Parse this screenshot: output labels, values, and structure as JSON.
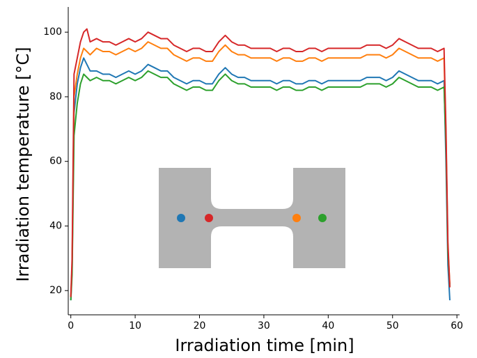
{
  "chart_data": {
    "type": "line",
    "x_label": "Irradiation time [min]",
    "y_label": "Irradiation temperature [°C]",
    "x": [
      0,
      0.2,
      0.5,
      1,
      1.5,
      2,
      2.5,
      3,
      4,
      5,
      6,
      7,
      8,
      9,
      10,
      11,
      12,
      13,
      14,
      15,
      16,
      17,
      18,
      19,
      20,
      21,
      22,
      23,
      24,
      25,
      26,
      27,
      28,
      29,
      30,
      31,
      32,
      33,
      34,
      35,
      36,
      37,
      38,
      39,
      40,
      41,
      42,
      43,
      44,
      45,
      46,
      47,
      48,
      49,
      50,
      51,
      52,
      53,
      54,
      55,
      56,
      57,
      58,
      58.3,
      58.6,
      58.9
    ],
    "series": [
      {
        "color": "#1f77b4",
        "values": [
          17,
          27,
          75,
          84,
          89,
          92,
          90,
          88,
          88,
          87,
          87,
          86,
          87,
          88,
          87,
          88,
          90,
          89,
          88,
          88,
          86,
          85,
          84,
          85,
          85,
          84,
          84,
          87,
          89,
          87,
          86,
          86,
          85,
          85,
          85,
          85,
          84,
          85,
          85,
          84,
          84,
          85,
          85,
          84,
          85,
          85,
          85,
          85,
          85,
          85,
          86,
          86,
          86,
          85,
          86,
          88,
          87,
          86,
          85,
          85,
          85,
          84,
          85,
          60,
          28,
          17
        ]
      },
      {
        "color": "#ff7f0e",
        "values": [
          18,
          28,
          80,
          87,
          92,
          95,
          94,
          93,
          95,
          94,
          94,
          93,
          94,
          95,
          94,
          95,
          97,
          96,
          95,
          95,
          93,
          92,
          91,
          92,
          92,
          91,
          91,
          94,
          96,
          94,
          93,
          93,
          92,
          92,
          92,
          92,
          91,
          92,
          92,
          91,
          91,
          92,
          92,
          91,
          92,
          92,
          92,
          92,
          92,
          92,
          93,
          93,
          93,
          92,
          93,
          95,
          94,
          93,
          92,
          92,
          92,
          91,
          92,
          68,
          33,
          22
        ]
      },
      {
        "color": "#2ca02c",
        "values": [
          17,
          25,
          68,
          78,
          84,
          87,
          86,
          85,
          86,
          85,
          85,
          84,
          85,
          86,
          85,
          86,
          88,
          87,
          86,
          86,
          84,
          83,
          82,
          83,
          83,
          82,
          82,
          85,
          87,
          85,
          84,
          84,
          83,
          83,
          83,
          83,
          82,
          83,
          83,
          82,
          82,
          83,
          83,
          82,
          83,
          83,
          83,
          83,
          83,
          83,
          84,
          84,
          84,
          83,
          84,
          86,
          85,
          84,
          83,
          83,
          83,
          82,
          83,
          65,
          32,
          21
        ]
      },
      {
        "color": "#d62728",
        "values": [
          18,
          30,
          87,
          92,
          97,
          100,
          101,
          97,
          98,
          97,
          97,
          96,
          97,
          98,
          97,
          98,
          100,
          99,
          98,
          98,
          96,
          95,
          94,
          95,
          95,
          94,
          94,
          97,
          99,
          97,
          96,
          96,
          95,
          95,
          95,
          95,
          94,
          95,
          95,
          94,
          94,
          95,
          95,
          94,
          95,
          95,
          95,
          95,
          95,
          95,
          96,
          96,
          96,
          95,
          96,
          98,
          97,
          96,
          95,
          95,
          95,
          94,
          95,
          70,
          35,
          21
        ]
      }
    ],
    "xlim": [
      -0.4,
      60.2
    ],
    "xticks": [
      0,
      10,
      20,
      30,
      40,
      50,
      60
    ],
    "ylim": [
      12.5,
      107.8
    ],
    "yticks": [
      20,
      40,
      60,
      80,
      100
    ]
  }
}
